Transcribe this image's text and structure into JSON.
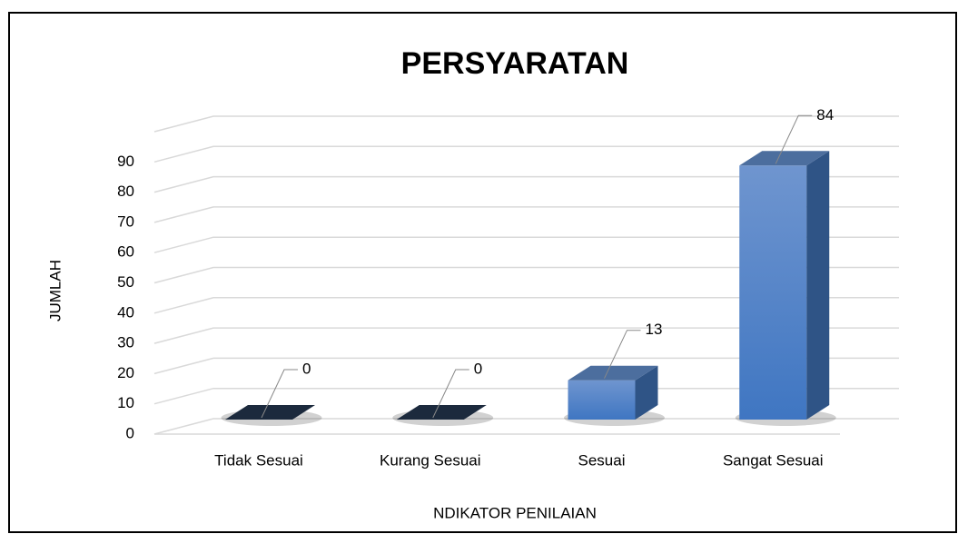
{
  "chart_data": {
    "type": "bar3d",
    "title": "PERSYARATAN",
    "x_label": "NDIKATOR PENILAIAN",
    "y_label": "JUMLAH",
    "categories": [
      "Tidak Sesuai",
      "Kurang Sesuai",
      "Sesuai",
      "Sangat Sesuai"
    ],
    "values": [
      0,
      0,
      13,
      84
    ],
    "color": "#4a7fc8",
    "ylim": [
      0,
      100
    ],
    "yticks": [
      0,
      10,
      20,
      30,
      40,
      50,
      60,
      70,
      80,
      90
    ],
    "grid": true
  }
}
